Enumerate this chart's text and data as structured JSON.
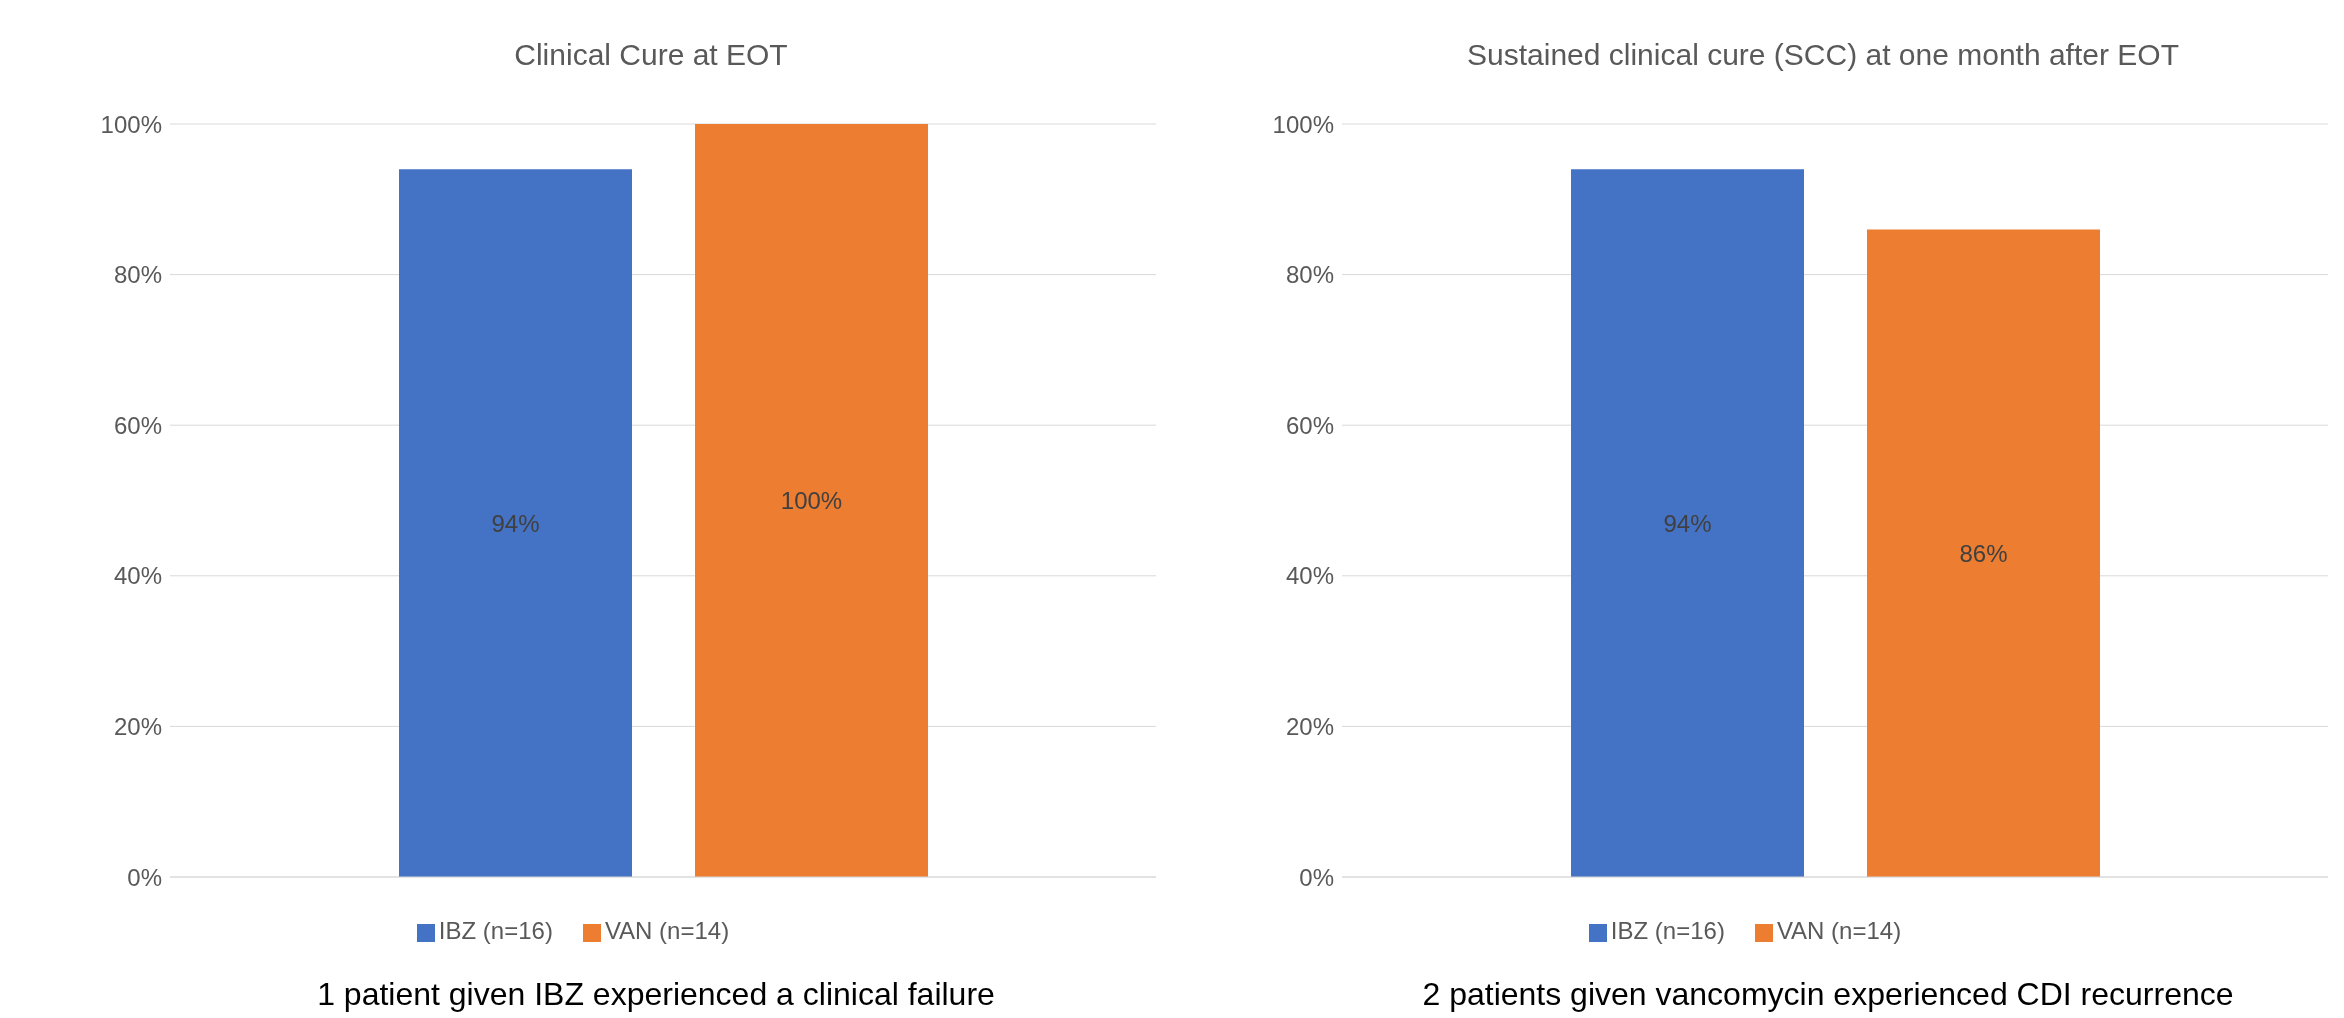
{
  "chart_data": [
    {
      "type": "bar",
      "title": "Clinical Cure at EOT",
      "categories": [
        null
      ],
      "series": [
        {
          "name": "IBZ (n=16)",
          "color": "#4472c4",
          "values": [
            94
          ],
          "value_labels": [
            "94%"
          ]
        },
        {
          "name": "VAN (n=14)",
          "color": "#ed7d31",
          "values": [
            100
          ],
          "value_labels": [
            "100%"
          ]
        }
      ],
      "ylim": [
        0,
        100
      ],
      "yticks": [
        {
          "value": 0,
          "label": "0%"
        },
        {
          "value": 20,
          "label": "20%"
        },
        {
          "value": 40,
          "label": "40%"
        },
        {
          "value": 60,
          "label": "60%"
        },
        {
          "value": 80,
          "label": "80%"
        },
        {
          "value": 100,
          "label": "100%"
        }
      ],
      "grid": "y",
      "legend": "bottom",
      "tick_labels": "y",
      "annotations": [
        "1 patient given IBZ experienced  a clinical failure"
      ]
    },
    {
      "type": "bar",
      "title": "Sustained clinical cure (SCC) at one month after EOT",
      "categories": [
        null
      ],
      "series": [
        {
          "name": "IBZ (n=16)",
          "color": "#4472c4",
          "values": [
            94
          ],
          "value_labels": [
            "94%"
          ]
        },
        {
          "name": "VAN (n=14)",
          "color": "#ed7d31",
          "values": [
            86
          ],
          "value_labels": [
            "86%"
          ]
        }
      ],
      "ylim": [
        0,
        100
      ],
      "yticks": [
        {
          "value": 0,
          "label": "0%"
        },
        {
          "value": 20,
          "label": "20%"
        },
        {
          "value": 40,
          "label": "40%"
        },
        {
          "value": 60,
          "label": "60%"
        },
        {
          "value": 80,
          "label": "80%"
        },
        {
          "value": 100,
          "label": "100%"
        }
      ],
      "grid": "y",
      "legend": "bottom",
      "tick_labels": "y",
      "annotations": [
        "2 patients given vancomycin experienced  CDI recurrence"
      ]
    }
  ]
}
